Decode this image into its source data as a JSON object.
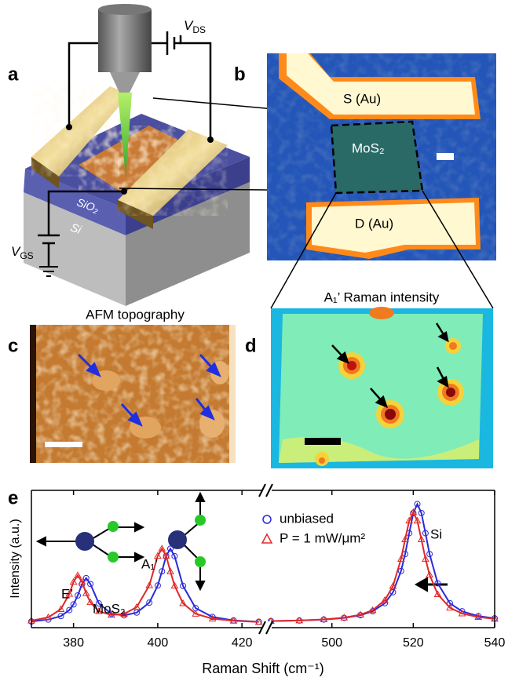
{
  "panels": {
    "a": {
      "label": "a",
      "v_ds": {
        "main": "V",
        "sub": "DS"
      },
      "v_gs": {
        "main": "V",
        "sub": "GS"
      },
      "sio2": "SiO₂",
      "si": "Si"
    },
    "b": {
      "label": "b",
      "source": "S (Au)",
      "drain": "D (Au)",
      "mos2": "MoS₂"
    },
    "c": {
      "label": "c",
      "title": "AFM topography"
    },
    "d": {
      "label": "d",
      "title": "A₁’ Raman intensity"
    }
  },
  "chart_data": {
    "type": "line",
    "label": "e",
    "xlabel": "Raman Shift (cm⁻¹)",
    "ylabel": "Intensity (a.u.)",
    "ylim": [
      0,
      1
    ],
    "annotations": [
      "E’",
      "MoS₂",
      "A₁’",
      "Si"
    ],
    "series": [
      {
        "name": "unbiased",
        "color": "#2a2ad8",
        "marker": "circle"
      },
      {
        "name": "P = 1 mW/μm²",
        "color": "#e02828",
        "marker": "triangle"
      }
    ],
    "segments": [
      {
        "xlim": [
          370,
          425
        ],
        "xticks": [
          380,
          400,
          420
        ],
        "x": [
          370,
          374,
          377,
          379,
          380,
          381,
          382,
          383,
          384,
          386,
          389,
          392,
          395,
          398,
          400,
          401,
          402,
          403,
          404,
          406,
          409,
          413,
          418,
          424
        ],
        "values": [
          [
            0.045,
            0.059,
            0.084,
            0.128,
            0.169,
            0.234,
            0.316,
            0.361,
            0.318,
            0.177,
            0.101,
            0.09,
            0.11,
            0.182,
            0.307,
            0.41,
            0.522,
            0.575,
            0.521,
            0.304,
            0.142,
            0.078,
            0.053,
            0.043
          ],
          [
            0.051,
            0.075,
            0.134,
            0.246,
            0.333,
            0.381,
            0.335,
            0.25,
            0.185,
            0.119,
            0.092,
            0.1,
            0.149,
            0.308,
            0.523,
            0.576,
            0.522,
            0.409,
            0.305,
            0.177,
            0.101,
            0.065,
            0.05,
            0.041
          ]
        ]
      },
      {
        "xlim": [
          485,
          540
        ],
        "xticks": [
          500,
          520,
          540
        ],
        "x": [
          485,
          492,
          498,
          503,
          507,
          510,
          513,
          515,
          517,
          518,
          519,
          520,
          521,
          522,
          523,
          524,
          526,
          529,
          532,
          536,
          540
        ],
        "values": [
          [
            0.048,
            0.052,
            0.059,
            0.071,
            0.091,
            0.119,
            0.178,
            0.258,
            0.413,
            0.536,
            0.688,
            0.835,
            0.9,
            0.835,
            0.688,
            0.536,
            0.323,
            0.178,
            0.119,
            0.084,
            0.068
          ],
          [
            0.048,
            0.052,
            0.06,
            0.073,
            0.094,
            0.127,
            0.2,
            0.303,
            0.501,
            0.643,
            0.779,
            0.84,
            0.779,
            0.643,
            0.501,
            0.386,
            0.243,
            0.145,
            0.103,
            0.077,
            0.064
          ]
        ]
      }
    ]
  }
}
